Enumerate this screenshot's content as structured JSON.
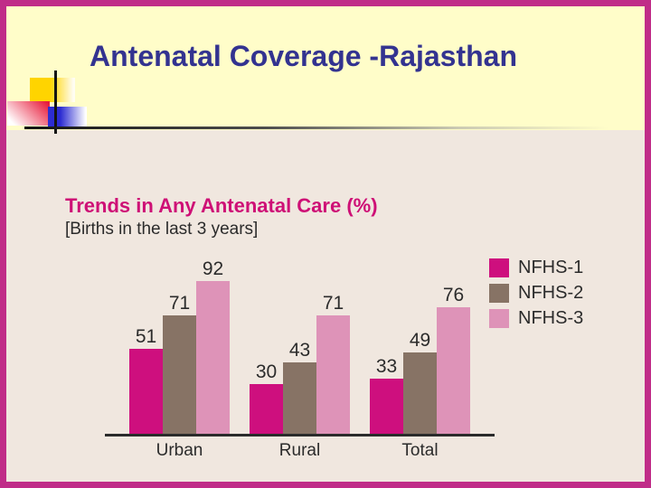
{
  "slide": {
    "title": "Antenatal Coverage -Rajasthan"
  },
  "chart_data": {
    "type": "bar",
    "title": "Trends in Any Antenatal Care (%)",
    "subtitle": "[Births in the last 3 years]",
    "categories": [
      "Urban",
      "Rural",
      "Total"
    ],
    "series": [
      {
        "name": "NFHS-1",
        "color": "#ce0f7e",
        "values": [
          51,
          30,
          33
        ]
      },
      {
        "name": "NFHS-2",
        "color": "#877365",
        "values": [
          71,
          43,
          49
        ]
      },
      {
        "name": "NFHS-3",
        "color": "#de93b8",
        "values": [
          92,
          71,
          76
        ]
      }
    ],
    "xlabel": "",
    "ylabel": "",
    "ylim": [
      0,
      100
    ],
    "grid": false,
    "legend_position": "right",
    "value_labels": true
  },
  "colors": {
    "frame": "#c02c88",
    "title_band_bg": "#fffdc9",
    "body_bg": "#f0e7df",
    "slide_title_text": "#333390",
    "chart_title_text": "#ce1076",
    "text_dark": "#2b2b2b",
    "axis": "#2b2b2b"
  }
}
